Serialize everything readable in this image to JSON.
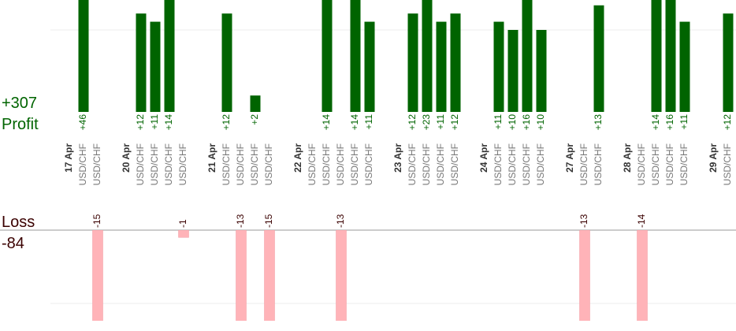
{
  "chart_data": {
    "type": "bar",
    "profit_total": "+307",
    "profit_title": "Profit",
    "loss_title": "Loss",
    "loss_total": "-84",
    "profit_color": "#006400",
    "loss_color": "#ffb3b8",
    "ylim": [
      0,
      13.65
    ],
    "loss_ylim": [
      -12.4,
      0
    ],
    "groups": [
      {
        "label": "17 Apr",
        "trades": [
          {
            "symbol": "USD/CHF",
            "value": 46,
            "value_label": "+46"
          },
          {
            "symbol": "USD/CHF",
            "value": -15
          }
        ]
      },
      {
        "label": "20 Apr",
        "trades": [
          {
            "symbol": "USD/CHF",
            "value": 12,
            "value_label": "+12"
          },
          {
            "symbol": "USD/CHF",
            "value": 11,
            "value_label": "+11"
          },
          {
            "symbol": "USD/CHF",
            "value": 14,
            "value_label": "+14"
          },
          {
            "symbol": "USD/CHF",
            "value": -1
          }
        ]
      },
      {
        "label": "21 Apr",
        "trades": [
          {
            "symbol": "USD/CHF",
            "value": 12,
            "value_label": "+12"
          },
          {
            "symbol": "USD/CHF",
            "value": -13
          },
          {
            "symbol": "USD/CHF",
            "value": 2,
            "value_label": "+2"
          },
          {
            "symbol": "USD/CHF",
            "value": -15
          }
        ]
      },
      {
        "label": "22 Apr",
        "trades": [
          {
            "symbol": "USD/CHF",
            "value": null
          },
          {
            "symbol": "USD/CHF",
            "value": 14,
            "value_label": "+14"
          },
          {
            "symbol": "USD/CHF",
            "value": -13
          },
          {
            "symbol": "USD/CHF",
            "value": 14,
            "value_label": "+14"
          },
          {
            "symbol": "USD/CHF",
            "value": 11,
            "value_label": "+11"
          }
        ]
      },
      {
        "label": "23 Apr",
        "trades": [
          {
            "symbol": "USD/CHF",
            "value": 12,
            "value_label": "+12"
          },
          {
            "symbol": "USD/CHF",
            "value": 23,
            "value_label": "+23"
          },
          {
            "symbol": "USD/CHF",
            "value": 11,
            "value_label": "+11"
          },
          {
            "symbol": "USD/CHF",
            "value": 12,
            "value_label": "+12"
          }
        ]
      },
      {
        "label": "24 Apr",
        "trades": [
          {
            "symbol": "USD/CHF",
            "value": 11,
            "value_label": "+11"
          },
          {
            "symbol": "USD/CHF",
            "value": 10,
            "value_label": "+10"
          },
          {
            "symbol": "USD/CHF",
            "value": 16,
            "value_label": "+16"
          },
          {
            "symbol": "USD/CHF",
            "value": 10,
            "value_label": "+10"
          }
        ]
      },
      {
        "label": "27 Apr",
        "trades": [
          {
            "symbol": "USD/CHF",
            "value": -13
          },
          {
            "symbol": "USD/CHF",
            "value": 13,
            "value_label": "+13"
          }
        ]
      },
      {
        "label": "28 Apr",
        "trades": [
          {
            "symbol": "USD/CHF",
            "value": -14
          },
          {
            "symbol": "USD/CHF",
            "value": 14,
            "value_label": "+14"
          },
          {
            "symbol": "USD/CHF",
            "value": 16,
            "value_label": "+16"
          },
          {
            "symbol": "USD/CHF",
            "value": 11,
            "value_label": "+11"
          }
        ]
      },
      {
        "label": "29 Apr",
        "trades": [
          {
            "symbol": "USD/CHF",
            "value": 12,
            "value_label": "+12"
          }
        ]
      }
    ]
  }
}
